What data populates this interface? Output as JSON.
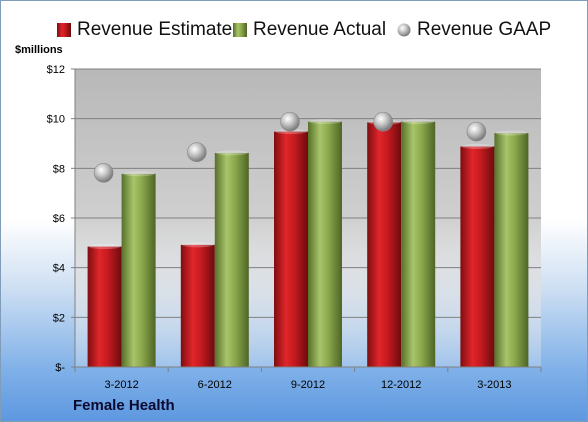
{
  "chart_data": {
    "type": "bar",
    "categories": [
      "3-2012",
      "6-2012",
      "9-2012",
      "12-2012",
      "3-2013"
    ],
    "series": [
      {
        "name": "Revenue Estimate",
        "values": [
          4.85,
          4.92,
          9.48,
          9.85,
          8.88
        ],
        "color": "#c0191e",
        "style": "bar"
      },
      {
        "name": "Revenue Actual",
        "values": [
          7.78,
          8.62,
          9.88,
          9.88,
          9.42
        ],
        "color": "#8aaa4a",
        "style": "bar"
      },
      {
        "name": "Revenue GAAP",
        "values": [
          7.82,
          8.65,
          9.88,
          9.88,
          9.48
        ],
        "color": "#b8b8b8",
        "style": "marker"
      }
    ],
    "ylabel": "$millions",
    "yticks": [
      "$-",
      "$2",
      "$4",
      "$6",
      "$8",
      "$10",
      "$12"
    ],
    "ylim": [
      0,
      12
    ],
    "grid": true,
    "legend": "top"
  },
  "company": "Female Health",
  "legend": {
    "estimate": "Revenue Estimate",
    "actual": "Revenue Actual",
    "gaap": "Revenue GAAP"
  }
}
